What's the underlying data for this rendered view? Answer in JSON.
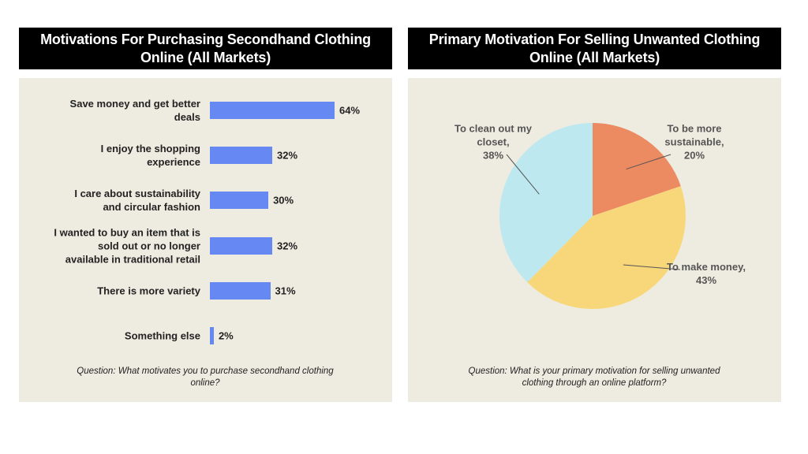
{
  "chart_data": [
    {
      "type": "hbar",
      "title": "Motivations For Purchasing Secondhand Clothing Online (All Markets)",
      "categories": [
        "Save money and get better deals",
        "I enjoy the shopping experience",
        "I  care about sustainability and circular fashion",
        "I wanted to buy an item that is sold out or no longer available in traditional retail",
        "There is more variety",
        "Something else"
      ],
      "values": [
        64,
        32,
        30,
        32,
        31,
        2
      ],
      "value_labels": [
        "64%",
        "32%",
        "30%",
        "32%",
        "31%",
        "2%"
      ],
      "color": "#6688f2",
      "footnote": "Question: What motivates you to purchase secondhand clothing online?"
    },
    {
      "type": "pie",
      "title": "Primary Motivation For Selling Unwanted Clothing Online (All Markets)",
      "categories": [
        "To be more sustainable,",
        "To make money,",
        "To clean out my closet,"
      ],
      "values": [
        20,
        43,
        38
      ],
      "value_labels": [
        "20%",
        "43%",
        "38%"
      ],
      "colors": [
        "#ec8a62",
        "#f8d77a",
        "#bde8f0"
      ],
      "footnote": "Question: What is your primary motivation for selling unwanted clothing through an online platform?"
    }
  ]
}
